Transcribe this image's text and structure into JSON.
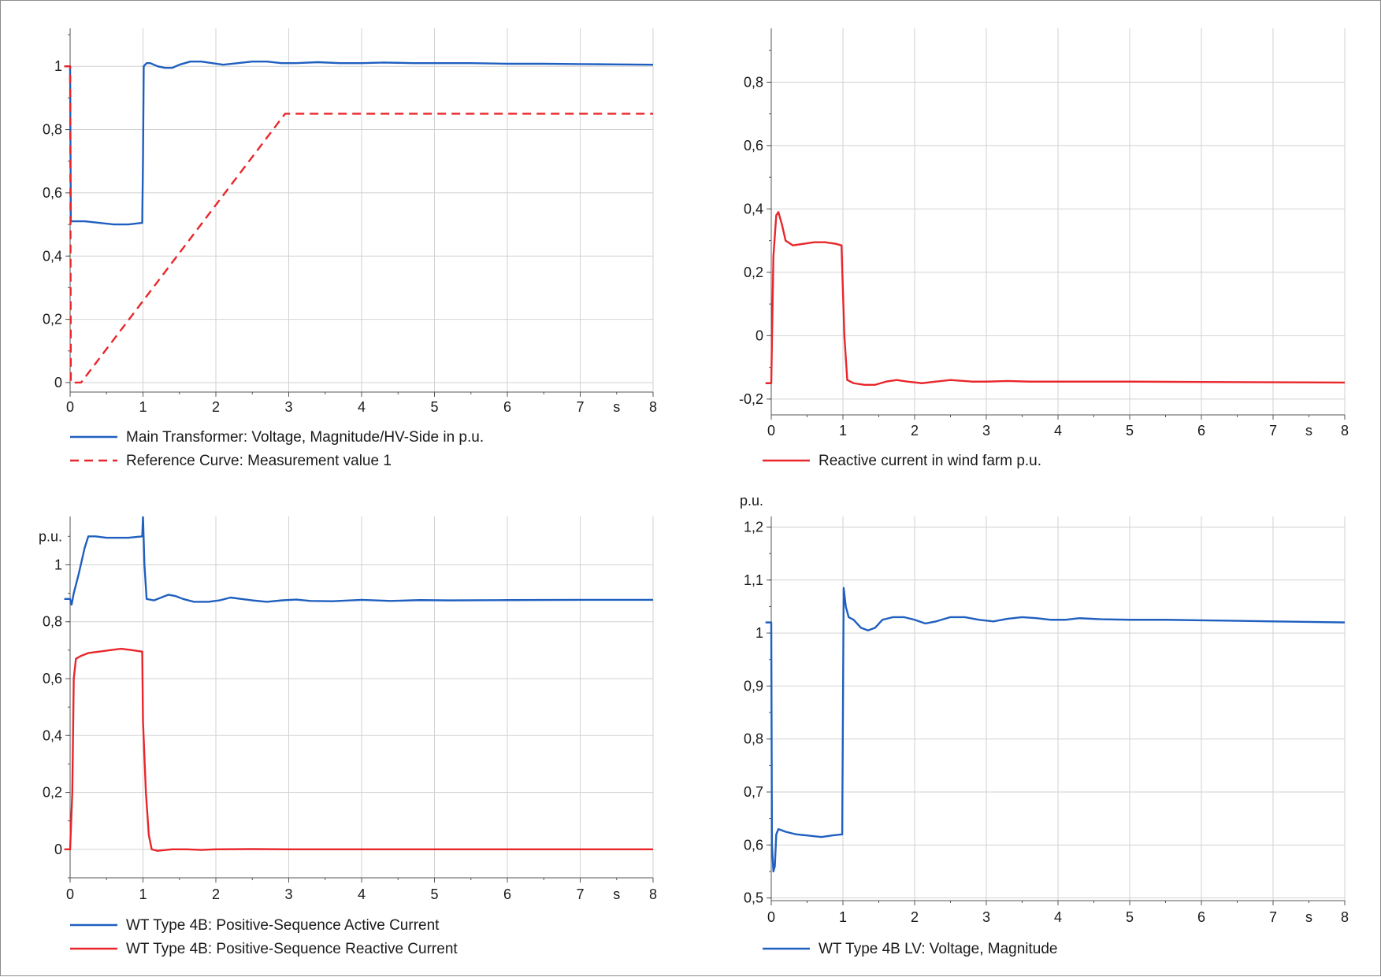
{
  "chart_data": [
    {
      "type": "line",
      "xlim": [
        0,
        8
      ],
      "ylim": [
        -0.03,
        1.12
      ],
      "x_ticks": [
        "0",
        "1",
        "2",
        "3",
        "4",
        "5",
        "6",
        "7",
        "8"
      ],
      "x_unit": "s",
      "y_ticks": [
        0,
        0.2,
        0.4,
        0.6,
        0.8,
        1
      ],
      "y_tick_labels": [
        "0",
        "0,2",
        "0,4",
        "0,6",
        "0,8",
        "1"
      ],
      "y_unit": "",
      "grid": true,
      "legend_position": "bottom-left",
      "series": [
        {
          "name": "Main Transformer: Voltage, Magnitude/HV-Side in p.u.",
          "color": "#1f5fbf",
          "style": "solid",
          "points": [
            [
              -0.08,
              1.0
            ],
            [
              0.0,
              1.0
            ],
            [
              0.01,
              0.51
            ],
            [
              0.2,
              0.51
            ],
            [
              0.4,
              0.505
            ],
            [
              0.6,
              0.5
            ],
            [
              0.8,
              0.5
            ],
            [
              0.99,
              0.505
            ],
            [
              1.0,
              0.7
            ],
            [
              1.01,
              1.0
            ],
            [
              1.05,
              1.01
            ],
            [
              1.1,
              1.01
            ],
            [
              1.2,
              1.0
            ],
            [
              1.3,
              0.995
            ],
            [
              1.4,
              0.995
            ],
            [
              1.5,
              1.005
            ],
            [
              1.65,
              1.015
            ],
            [
              1.8,
              1.015
            ],
            [
              1.95,
              1.01
            ],
            [
              2.1,
              1.005
            ],
            [
              2.3,
              1.01
            ],
            [
              2.5,
              1.015
            ],
            [
              2.7,
              1.015
            ],
            [
              2.9,
              1.01
            ],
            [
              3.1,
              1.01
            ],
            [
              3.4,
              1.013
            ],
            [
              3.7,
              1.01
            ],
            [
              4.0,
              1.01
            ],
            [
              4.3,
              1.012
            ],
            [
              4.7,
              1.01
            ],
            [
              5.0,
              1.01
            ],
            [
              5.5,
              1.01
            ],
            [
              6.0,
              1.008
            ],
            [
              6.5,
              1.008
            ],
            [
              7.0,
              1.007
            ],
            [
              7.5,
              1.006
            ],
            [
              8.0,
              1.005
            ]
          ]
        },
        {
          "name": "Reference Curve: Measurement value 1",
          "color": "#e8262b",
          "style": "dashed",
          "points": [
            [
              -0.08,
              1.0
            ],
            [
              0.0,
              1.0
            ],
            [
              0.01,
              0.0
            ],
            [
              0.15,
              0.0
            ],
            [
              2.95,
              0.85
            ],
            [
              8.0,
              0.85
            ]
          ]
        }
      ]
    },
    {
      "type": "line",
      "xlim": [
        0,
        8
      ],
      "ylim": [
        -0.25,
        0.97
      ],
      "x_ticks": [
        "0",
        "1",
        "2",
        "3",
        "4",
        "5",
        "6",
        "7",
        "8"
      ],
      "x_unit": "s",
      "y_ticks": [
        -0.2,
        0,
        0.2,
        0.4,
        0.6,
        0.8
      ],
      "y_tick_labels": [
        "-0,2",
        "0",
        "0,2",
        "0,4",
        "0,6",
        "0,8"
      ],
      "y_unit": "",
      "grid": true,
      "legend_position": "bottom-left",
      "series": [
        {
          "name": "Reactive current in wind farm p.u.",
          "color": "#e8262b",
          "style": "solid",
          "points": [
            [
              -0.08,
              -0.15
            ],
            [
              0.0,
              -0.15
            ],
            [
              0.03,
              0.25
            ],
            [
              0.07,
              0.38
            ],
            [
              0.1,
              0.39
            ],
            [
              0.15,
              0.35
            ],
            [
              0.2,
              0.3
            ],
            [
              0.3,
              0.285
            ],
            [
              0.45,
              0.29
            ],
            [
              0.6,
              0.295
            ],
            [
              0.75,
              0.295
            ],
            [
              0.9,
              0.29
            ],
            [
              0.98,
              0.285
            ],
            [
              1.0,
              0.14
            ],
            [
              1.02,
              0.0
            ],
            [
              1.06,
              -0.14
            ],
            [
              1.15,
              -0.15
            ],
            [
              1.3,
              -0.155
            ],
            [
              1.45,
              -0.155
            ],
            [
              1.6,
              -0.145
            ],
            [
              1.75,
              -0.14
            ],
            [
              1.9,
              -0.145
            ],
            [
              2.1,
              -0.15
            ],
            [
              2.3,
              -0.145
            ],
            [
              2.5,
              -0.14
            ],
            [
              2.8,
              -0.145
            ],
            [
              3.0,
              -0.145
            ],
            [
              3.3,
              -0.143
            ],
            [
              3.6,
              -0.145
            ],
            [
              4.0,
              -0.145
            ],
            [
              4.5,
              -0.145
            ],
            [
              5.0,
              -0.145
            ],
            [
              6.0,
              -0.146
            ],
            [
              7.0,
              -0.147
            ],
            [
              8.0,
              -0.148
            ]
          ]
        }
      ]
    },
    {
      "type": "line",
      "xlim": [
        0,
        8
      ],
      "ylim": [
        -0.1,
        1.17
      ],
      "x_ticks": [
        "0",
        "1",
        "2",
        "3",
        "4",
        "5",
        "6",
        "7",
        "8"
      ],
      "x_unit": "s",
      "y_ticks": [
        0,
        0.2,
        0.4,
        0.6,
        0.8,
        1
      ],
      "y_tick_labels": [
        "0",
        "0,2",
        "0,4",
        "0,6",
        "0,8",
        "1"
      ],
      "y_unit": "p.u.",
      "grid": true,
      "legend_position": "bottom-left",
      "series": [
        {
          "name": "WT Type 4B: Positive-Sequence Active Current",
          "color": "#1f5fbf",
          "style": "solid",
          "points": [
            [
              -0.08,
              0.88
            ],
            [
              0.0,
              0.88
            ],
            [
              0.02,
              0.86
            ],
            [
              0.05,
              0.9
            ],
            [
              0.12,
              0.97
            ],
            [
              0.2,
              1.06
            ],
            [
              0.25,
              1.1
            ],
            [
              0.35,
              1.1
            ],
            [
              0.5,
              1.095
            ],
            [
              0.65,
              1.095
            ],
            [
              0.8,
              1.095
            ],
            [
              0.99,
              1.1
            ],
            [
              1.0,
              1.17
            ],
            [
              1.02,
              1.0
            ],
            [
              1.05,
              0.88
            ],
            [
              1.15,
              0.875
            ],
            [
              1.25,
              0.885
            ],
            [
              1.35,
              0.895
            ],
            [
              1.45,
              0.89
            ],
            [
              1.55,
              0.88
            ],
            [
              1.7,
              0.87
            ],
            [
              1.9,
              0.87
            ],
            [
              2.05,
              0.875
            ],
            [
              2.2,
              0.885
            ],
            [
              2.35,
              0.88
            ],
            [
              2.5,
              0.875
            ],
            [
              2.7,
              0.87
            ],
            [
              2.9,
              0.875
            ],
            [
              3.1,
              0.878
            ],
            [
              3.3,
              0.873
            ],
            [
              3.6,
              0.872
            ],
            [
              4.0,
              0.877
            ],
            [
              4.4,
              0.873
            ],
            [
              4.8,
              0.876
            ],
            [
              5.2,
              0.875
            ],
            [
              6.0,
              0.876
            ],
            [
              7.0,
              0.877
            ],
            [
              8.0,
              0.877
            ]
          ]
        },
        {
          "name": "WT Type 4B: Positive-Sequence Reactive Current",
          "color": "#e8262b",
          "style": "solid",
          "points": [
            [
              -0.08,
              0.0
            ],
            [
              0.0,
              0.0
            ],
            [
              0.03,
              0.2
            ],
            [
              0.05,
              0.6
            ],
            [
              0.08,
              0.67
            ],
            [
              0.15,
              0.68
            ],
            [
              0.25,
              0.69
            ],
            [
              0.4,
              0.695
            ],
            [
              0.55,
              0.7
            ],
            [
              0.7,
              0.705
            ],
            [
              0.85,
              0.7
            ],
            [
              0.99,
              0.695
            ],
            [
              1.0,
              0.45
            ],
            [
              1.04,
              0.2
            ],
            [
              1.08,
              0.05
            ],
            [
              1.12,
              0.0
            ],
            [
              1.2,
              -0.005
            ],
            [
              1.4,
              0.0
            ],
            [
              1.6,
              0.0
            ],
            [
              1.8,
              -0.002
            ],
            [
              2.0,
              0.0
            ],
            [
              2.5,
              0.001
            ],
            [
              3.0,
              0.0
            ],
            [
              4.0,
              0.0
            ],
            [
              5.0,
              0.0
            ],
            [
              6.0,
              0.0
            ],
            [
              7.0,
              0.0
            ],
            [
              8.0,
              0.0
            ]
          ]
        }
      ]
    },
    {
      "type": "line",
      "xlim": [
        0,
        8
      ],
      "ylim": [
        0.495,
        1.22
      ],
      "x_ticks": [
        "0",
        "1",
        "2",
        "3",
        "4",
        "5",
        "6",
        "7",
        "8"
      ],
      "x_unit": "s",
      "y_ticks": [
        0.5,
        0.6,
        0.7,
        0.8,
        0.9,
        1,
        1.1,
        1.2
      ],
      "y_tick_labels": [
        "0,5",
        "0,6",
        "0,7",
        "0,8",
        "0,9",
        "1",
        "1,1",
        "1,2"
      ],
      "y_unit": "p.u.",
      "grid": true,
      "legend_position": "bottom-left",
      "series": [
        {
          "name": "WT Type 4B LV: Voltage, Magnitude",
          "color": "#1f5fbf",
          "style": "solid",
          "points": [
            [
              -0.08,
              1.02
            ],
            [
              0.0,
              1.02
            ],
            [
              0.01,
              0.6
            ],
            [
              0.03,
              0.55
            ],
            [
              0.05,
              0.56
            ],
            [
              0.07,
              0.62
            ],
            [
              0.1,
              0.63
            ],
            [
              0.2,
              0.625
            ],
            [
              0.35,
              0.62
            ],
            [
              0.5,
              0.618
            ],
            [
              0.7,
              0.615
            ],
            [
              0.85,
              0.618
            ],
            [
              0.99,
              0.62
            ],
            [
              1.0,
              0.85
            ],
            [
              1.01,
              1.085
            ],
            [
              1.04,
              1.05
            ],
            [
              1.08,
              1.03
            ],
            [
              1.15,
              1.025
            ],
            [
              1.25,
              1.01
            ],
            [
              1.35,
              1.005
            ],
            [
              1.45,
              1.01
            ],
            [
              1.55,
              1.025
            ],
            [
              1.7,
              1.03
            ],
            [
              1.85,
              1.03
            ],
            [
              2.0,
              1.025
            ],
            [
              2.15,
              1.018
            ],
            [
              2.3,
              1.022
            ],
            [
              2.5,
              1.03
            ],
            [
              2.7,
              1.03
            ],
            [
              2.9,
              1.025
            ],
            [
              3.1,
              1.022
            ],
            [
              3.3,
              1.027
            ],
            [
              3.5,
              1.03
            ],
            [
              3.7,
              1.028
            ],
            [
              3.9,
              1.025
            ],
            [
              4.1,
              1.025
            ],
            [
              4.3,
              1.028
            ],
            [
              4.6,
              1.026
            ],
            [
              5.0,
              1.025
            ],
            [
              5.5,
              1.025
            ],
            [
              6.0,
              1.024
            ],
            [
              6.5,
              1.023
            ],
            [
              7.0,
              1.022
            ],
            [
              7.5,
              1.021
            ],
            [
              8.0,
              1.02
            ]
          ]
        }
      ]
    }
  ]
}
